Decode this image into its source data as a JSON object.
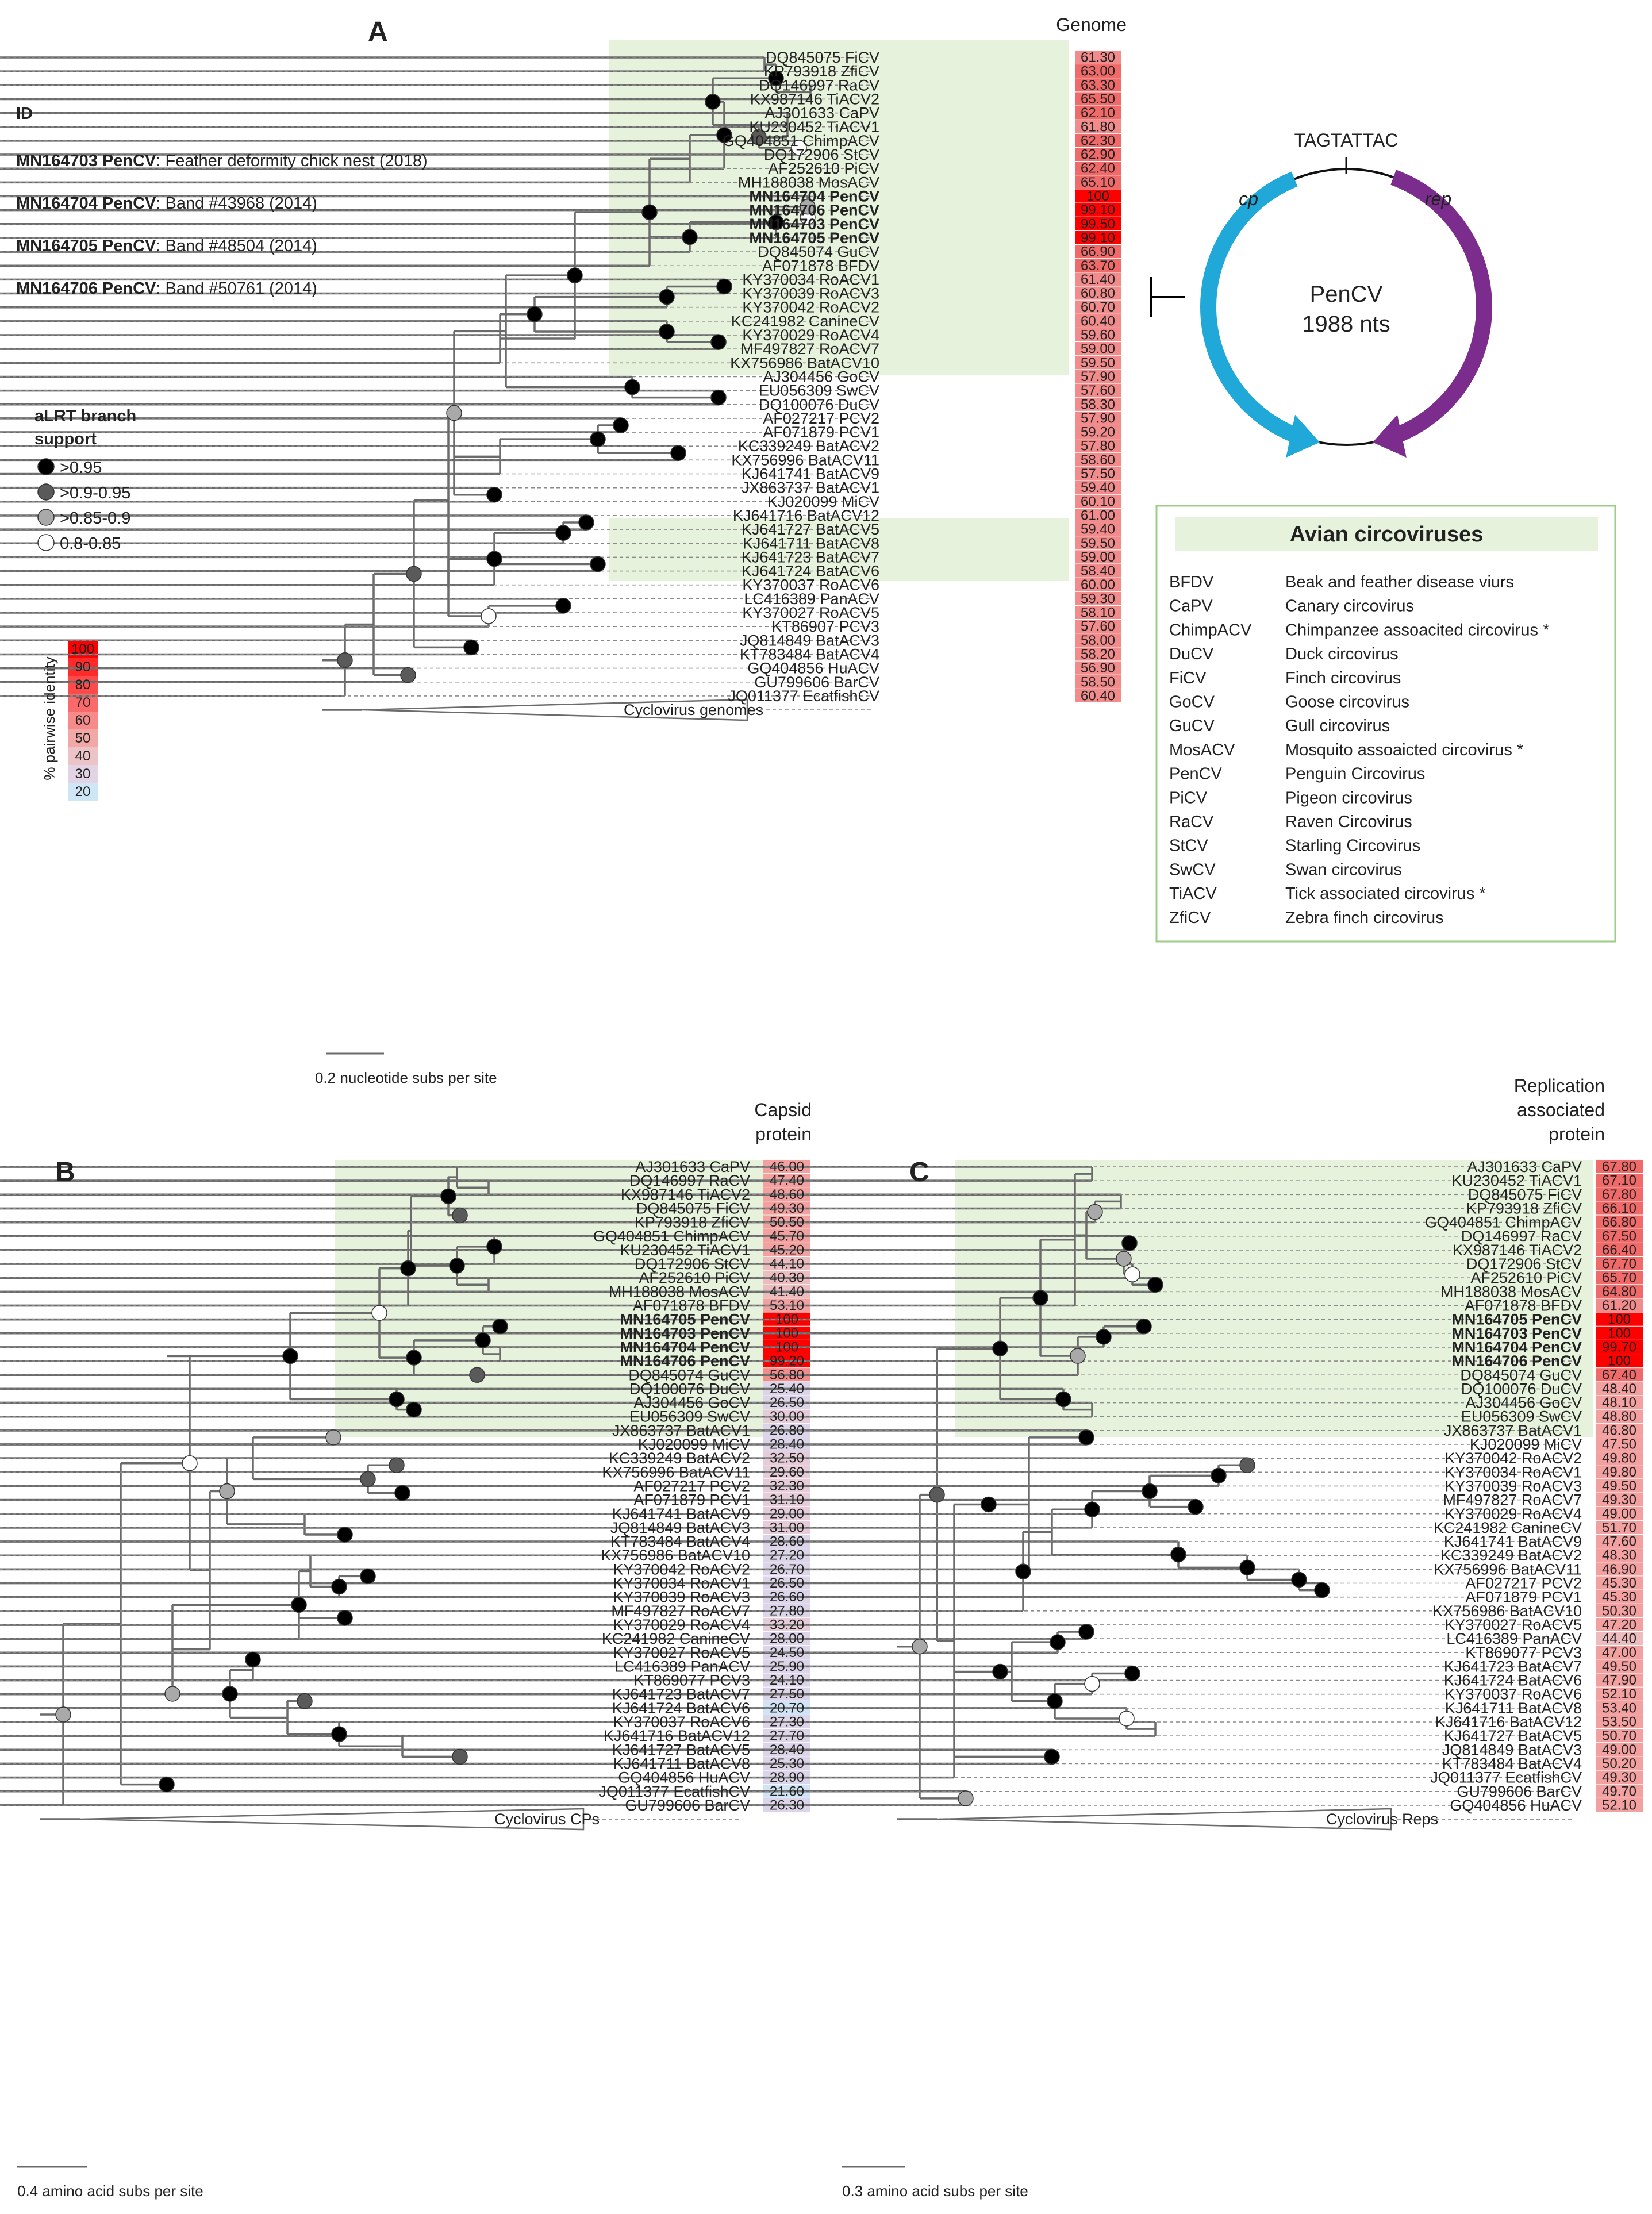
{
  "panels": {
    "A": {
      "letter": "A",
      "title": "Genome",
      "scale": "0.2 nucleotide subs per site",
      "collapsed": "Cyclovirus genomes"
    },
    "B": {
      "letter": "B",
      "title": "Capsid\nprotein",
      "scale": "0.4 amino acid subs per site",
      "collapsed": "Cyclovirus CPs"
    },
    "C": {
      "letter": "C",
      "title": "Replication\nassociated\nprotein",
      "scale": "0.3 amino acid subs per site",
      "collapsed": "Cyclovirus Reps"
    }
  },
  "id_block": {
    "heading": "ID",
    "items": [
      {
        "acc": "MN164703 PenCV",
        "desc": ": Feather deformity chick nest (2018)"
      },
      {
        "acc": "MN164704 PenCV",
        "desc": ": Band #43968 (2014)"
      },
      {
        "acc": "MN164705 PenCV",
        "desc": ": Band #48504 (2014)"
      },
      {
        "acc": "MN164706 PenCV",
        "desc": ": Band #50761 (2014)"
      }
    ]
  },
  "support_legend": {
    "title": "aLRT branch\nsupport",
    "items": [
      {
        "label": ">0.95",
        "color": "#000000"
      },
      {
        "label": ">0.9-0.95",
        "color": "#5a5a5a"
      },
      {
        "label": ">0.85-0.9",
        "color": "#a9a9a9"
      },
      {
        "label": "0.8-0.85",
        "color": "#ffffff"
      }
    ]
  },
  "identity_scale": {
    "title": "% pairwise identity",
    "items": [
      {
        "label": "100",
        "color": "#ff0000"
      },
      {
        "label": "90",
        "color": "#ff2a2a"
      },
      {
        "label": "80",
        "color": "#ff4a4a"
      },
      {
        "label": "70",
        "color": "#fb6a6a"
      },
      {
        "label": "60",
        "color": "#f78a8a"
      },
      {
        "label": "50",
        "color": "#f3a8a8"
      },
      {
        "label": "40",
        "color": "#ecc3c6"
      },
      {
        "label": "30",
        "color": "#e2d4e4"
      },
      {
        "label": "20",
        "color": "#cfe6f7"
      }
    ]
  },
  "genome_map": {
    "motif": "TAGTATTAC",
    "name": "PenCV",
    "length": "1988 nts",
    "cp": "cp",
    "rep": "rep",
    "cp_color": "#20a8d8",
    "rep_color": "#7b2c8c"
  },
  "avian_box": {
    "title": "Avian circoviruses",
    "items": [
      {
        "abbr": "BFDV",
        "name": "Beak and feather disease viurs"
      },
      {
        "abbr": "CaPV",
        "name": "Canary circovirus"
      },
      {
        "abbr": "ChimpACV",
        "name": "Chimpanzee assoacited circovirus *"
      },
      {
        "abbr": "DuCV",
        "name": "Duck circovirus"
      },
      {
        "abbr": "FiCV",
        "name": "Finch circovirus"
      },
      {
        "abbr": "GoCV",
        "name": "Goose circovirus"
      },
      {
        "abbr": "GuCV",
        "name": "Gull circovirus"
      },
      {
        "abbr": "MosACV",
        "name": "Mosquito assoaicted circovirus *"
      },
      {
        "abbr": "PenCV",
        "name": "Penguin Circovirus"
      },
      {
        "abbr": "PiCV",
        "name": "Pigeon circovirus"
      },
      {
        "abbr": "RaCV",
        "name": "Raven Circovirus"
      },
      {
        "abbr": "StCV",
        "name": "Starling Circovirus"
      },
      {
        "abbr": "SwCV",
        "name": "Swan circovirus"
      },
      {
        "abbr": "TiACV",
        "name": "Tick associated circovirus *"
      },
      {
        "abbr": "ZfiCV",
        "name": "Zebra finch circovirus"
      }
    ]
  },
  "trees": {
    "A": [
      {
        "label": "DQ845075 FiCV",
        "value": "61.30"
      },
      {
        "label": "KP793918 ZfiCV",
        "value": "63.00"
      },
      {
        "label": "DQ146997 RaCV",
        "value": "63.30"
      },
      {
        "label": "KX987146 TiACV2",
        "value": "65.50"
      },
      {
        "label": "AJ301633 CaPV",
        "value": "62.10"
      },
      {
        "label": "KU230452 TiACV1",
        "value": "61.80"
      },
      {
        "label": "GQ404851 ChimpACV",
        "value": "62.30"
      },
      {
        "label": "DQ172906 StCV",
        "value": "62.90"
      },
      {
        "label": "AF252610 PiCV",
        "value": "62.40"
      },
      {
        "label": "MH188038 MosACV",
        "value": "65.10"
      },
      {
        "label": "MN164704 PenCV",
        "value": "100",
        "bold": true
      },
      {
        "label": "MN164706 PenCV",
        "value": "99.10",
        "bold": true
      },
      {
        "label": "MN164703 PenCV",
        "value": "99.50",
        "bold": true
      },
      {
        "label": "MN164705 PenCV",
        "value": "99.10",
        "bold": true
      },
      {
        "label": "DQ845074 GuCV",
        "value": "66.90"
      },
      {
        "label": "AF071878 BFDV",
        "value": "63.70"
      },
      {
        "label": "KY370034 RoACV1",
        "value": "61.40"
      },
      {
        "label": "KY370039 RoACV3",
        "value": "60.80"
      },
      {
        "label": "KY370042 RoACV2",
        "value": "60.70"
      },
      {
        "label": "KC241982 CanineCV",
        "value": "60.40"
      },
      {
        "label": "KY370029 RoACV4",
        "value": "59.60"
      },
      {
        "label": "MF497827 RoACV7",
        "value": "59.00"
      },
      {
        "label": "KX756986 BatACV10",
        "value": "59.50"
      },
      {
        "label": "AJ304456 GoCV",
        "value": "57.90"
      },
      {
        "label": "EU056309 SwCV",
        "value": "57.60"
      },
      {
        "label": "DQ100076 DuCV",
        "value": "58.30"
      },
      {
        "label": "AF027217 PCV2",
        "value": "57.90"
      },
      {
        "label": "AF071879 PCV1",
        "value": "59.20"
      },
      {
        "label": "KC339249 BatACV2",
        "value": "57.80"
      },
      {
        "label": "KX756996 BatACV11",
        "value": "58.60"
      },
      {
        "label": "KJ641741 BatACV9",
        "value": "57.50"
      },
      {
        "label": "JX863737 BatACV1",
        "value": "59.40"
      },
      {
        "label": "KJ020099 MiCV",
        "value": "60.10"
      },
      {
        "label": "KJ641716 BatACV12",
        "value": "61.00"
      },
      {
        "label": "KJ641727 BatACV5",
        "value": "59.40"
      },
      {
        "label": "KJ641711 BatACV8",
        "value": "59.50"
      },
      {
        "label": "KJ641723 BatACV7",
        "value": "59.00"
      },
      {
        "label": "KJ641724 BatACV6",
        "value": "58.40"
      },
      {
        "label": "KY370037 RoACV6",
        "value": "60.00"
      },
      {
        "label": "LC416389 PanACV",
        "value": "59.30"
      },
      {
        "label": "KY370027 RoACV5",
        "value": "58.10"
      },
      {
        "label": "KT86907 PCV3",
        "value": "57.60"
      },
      {
        "label": "JQ814849 BatACV3",
        "value": "58.00"
      },
      {
        "label": "KT783484 BatACV4",
        "value": "58.20"
      },
      {
        "label": "GQ404856 HuACV",
        "value": "56.90"
      },
      {
        "label": "GU799606 BarCV",
        "value": "58.50"
      },
      {
        "label": "JQ011377 EcatfishCV",
        "value": "60.40"
      }
    ],
    "B": [
      {
        "label": "AJ301633 CaPV",
        "value": "46.00"
      },
      {
        "label": "DQ146997 RaCV",
        "value": "47.40"
      },
      {
        "label": "KX987146 TiACV2",
        "value": "48.60"
      },
      {
        "label": "DQ845075 FiCV",
        "value": "49.30"
      },
      {
        "label": "KP793918 ZfiCV",
        "value": "50.50"
      },
      {
        "label": "GQ404851 ChimpACV",
        "value": "45.70"
      },
      {
        "label": "KU230452 TiACV1",
        "value": "45.20"
      },
      {
        "label": "DQ172906 StCV",
        "value": "44.10"
      },
      {
        "label": "AF252610 PiCV",
        "value": "40.30"
      },
      {
        "label": "MH188038 MosACV",
        "value": "41.40"
      },
      {
        "label": "AF071878 BFDV",
        "value": "53.10"
      },
      {
        "label": "MN164705 PenCV",
        "value": "100",
        "bold": true
      },
      {
        "label": "MN164703 PenCV",
        "value": "100",
        "bold": true
      },
      {
        "label": "MN164704 PenCV",
        "value": "100",
        "bold": true
      },
      {
        "label": "MN164706 PenCV",
        "value": "99.20",
        "bold": true
      },
      {
        "label": "DQ845074 GuCV",
        "value": "56.80"
      },
      {
        "label": "DQ100076 DuCV",
        "value": "25.40"
      },
      {
        "label": "AJ304456 GoCV",
        "value": "26.50"
      },
      {
        "label": "EU056309 SwCV",
        "value": "30.00"
      },
      {
        "label": "JX863737 BatACV1",
        "value": "26.80"
      },
      {
        "label": "KJ020099 MiCV",
        "value": "28.40"
      },
      {
        "label": "KC339249 BatACV2",
        "value": "32.50"
      },
      {
        "label": "KX756996 BatACV11",
        "value": "29.60"
      },
      {
        "label": "AF027217 PCV2",
        "value": "32.30"
      },
      {
        "label": "AF071879 PCV1",
        "value": "31.10"
      },
      {
        "label": "KJ641741 BatACV9",
        "value": "29.00"
      },
      {
        "label": "JQ814849 BatACV3",
        "value": "31.00"
      },
      {
        "label": "KT783484 BatACV4",
        "value": "28.60"
      },
      {
        "label": "KX756986 BatACV10",
        "value": "27.20"
      },
      {
        "label": "KY370042 RoACV2",
        "value": "26.70"
      },
      {
        "label": "KY370034 RoACV1",
        "value": "26.50"
      },
      {
        "label": "KY370039 RoACV3",
        "value": "26.60"
      },
      {
        "label": "MF497827 RoACV7",
        "value": "27.80"
      },
      {
        "label": "KY370029 RoACV4",
        "value": "33.20"
      },
      {
        "label": "KC241982 CanineCV",
        "value": "28.00"
      },
      {
        "label": "KY370027 RoACV5",
        "value": "24.50"
      },
      {
        "label": "LC416389 PanACV",
        "value": "25.90"
      },
      {
        "label": "KT869077 PCV3",
        "value": "24.10"
      },
      {
        "label": "KJ641723 BatACV7",
        "value": "27.50"
      },
      {
        "label": "KJ641724 BatACV6",
        "value": "20.70"
      },
      {
        "label": "KY370037 RoACV6",
        "value": "27.30"
      },
      {
        "label": "KJ641716 BatACV12",
        "value": "27.70"
      },
      {
        "label": "KJ641727 BatACV5",
        "value": "28.40"
      },
      {
        "label": "KJ641711 BatACV8",
        "value": "25.30"
      },
      {
        "label": "GQ404856 HuACV",
        "value": "28.90"
      },
      {
        "label": "JQ011377 EcatfishCV",
        "value": "21.60"
      },
      {
        "label": "GU799606 BarCV",
        "value": "26.30"
      }
    ],
    "C": [
      {
        "label": "AJ301633 CaPV",
        "value": "67.80"
      },
      {
        "label": "KU230452 TiACV1",
        "value": "67.10"
      },
      {
        "label": "DQ845075 FiCV",
        "value": "67.80"
      },
      {
        "label": "KP793918 ZfiCV",
        "value": "66.10"
      },
      {
        "label": "GQ404851 ChimpACV",
        "value": "66.80"
      },
      {
        "label": "DQ146997 RaCV",
        "value": "67.50"
      },
      {
        "label": "KX987146 TiACV2",
        "value": "66.40"
      },
      {
        "label": "DQ172906 StCV",
        "value": "67.70"
      },
      {
        "label": "AF252610 PiCV",
        "value": "65.70"
      },
      {
        "label": "MH188038 MosACV",
        "value": "64.80"
      },
      {
        "label": "AF071878 BFDV",
        "value": "61.20"
      },
      {
        "label": "MN164705 PenCV",
        "value": "100",
        "bold": true
      },
      {
        "label": "MN164703 PenCV",
        "value": "100",
        "bold": true
      },
      {
        "label": "MN164704 PenCV",
        "value": "99.70",
        "bold": true
      },
      {
        "label": "MN164706 PenCV",
        "value": "100",
        "bold": true
      },
      {
        "label": "DQ845074 GuCV",
        "value": "67.40"
      },
      {
        "label": "DQ100076 DuCV",
        "value": "48.40"
      },
      {
        "label": "AJ304456 GoCV",
        "value": "48.10"
      },
      {
        "label": "EU056309 SwCV",
        "value": "48.80"
      },
      {
        "label": "JX863737 BatACV1",
        "value": "46.80"
      },
      {
        "label": "KJ020099 MiCV",
        "value": "47.50"
      },
      {
        "label": "KY370042 RoACV2",
        "value": "49.80"
      },
      {
        "label": "KY370034 RoACV1",
        "value": "49.80"
      },
      {
        "label": "KY370039 RoACV3",
        "value": "49.50"
      },
      {
        "label": "MF497827 RoACV7",
        "value": "49.30"
      },
      {
        "label": "KY370029 RoACV4",
        "value": "49.00"
      },
      {
        "label": "KC241982 CanineCV",
        "value": "51.70"
      },
      {
        "label": "KJ641741 BatACV9",
        "value": "47.60"
      },
      {
        "label": "KC339249 BatACV2",
        "value": "48.30"
      },
      {
        "label": "KX756996 BatACV11",
        "value": "46.90"
      },
      {
        "label": "AF027217 PCV2",
        "value": "45.30"
      },
      {
        "label": "AF071879 PCV1",
        "value": "45.30"
      },
      {
        "label": "KX756986 BatACV10",
        "value": "50.30"
      },
      {
        "label": "KY370027 RoACV5",
        "value": "47.20"
      },
      {
        "label": "LC416389 PanACV",
        "value": "44.40"
      },
      {
        "label": "KT869077 PCV3",
        "value": "47.00"
      },
      {
        "label": "KJ641723 BatACV7",
        "value": "49.50"
      },
      {
        "label": "KJ641724 BatACV6",
        "value": "47.90"
      },
      {
        "label": "KY370037 RoACV6",
        "value": "52.10"
      },
      {
        "label": "KJ641711 BatACV8",
        "value": "53.40"
      },
      {
        "label": "KJ641716 BatACV12",
        "value": "53.50"
      },
      {
        "label": "KJ641727 BatACV5",
        "value": "50.70"
      },
      {
        "label": "JQ814849 BatACV3",
        "value": "49.00"
      },
      {
        "label": "KT783484 BatACV4",
        "value": "50.20"
      },
      {
        "label": "JQ011377 EcatfishCV",
        "value": "49.30"
      },
      {
        "label": "GU799606 BarCV",
        "value": "49.70"
      },
      {
        "label": "GQ404856 HuACV",
        "value": "52.10"
      }
    ]
  }
}
